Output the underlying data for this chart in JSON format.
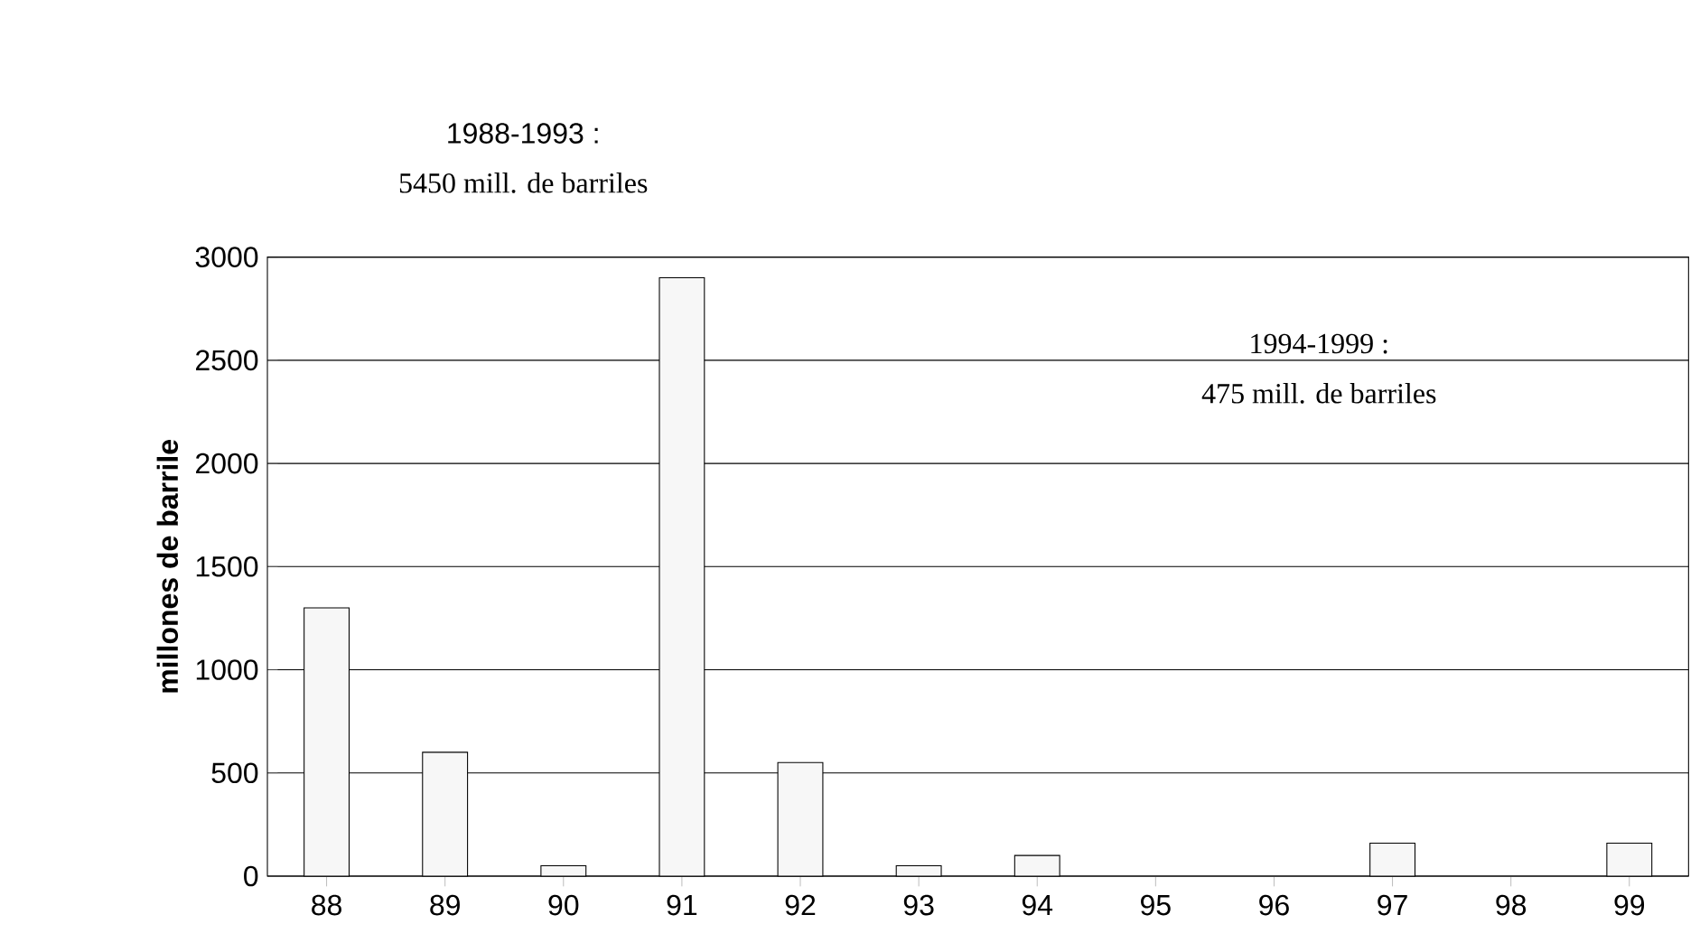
{
  "chart_data": {
    "type": "bar",
    "ylabel": "millones de barrile",
    "categories": [
      "88",
      "89",
      "90",
      "91",
      "92",
      "93",
      "94",
      "95",
      "96",
      "97",
      "98",
      "99"
    ],
    "values": [
      1300,
      600,
      50,
      2900,
      550,
      50,
      100,
      null,
      null,
      160,
      null,
      160
    ],
    "color": "#f7f7f7",
    "ylim": [
      0,
      3000
    ],
    "yticks": [
      0,
      500,
      1000,
      1500,
      2000,
      2500,
      3000
    ],
    "grid": "y",
    "annotations": [
      "1988-1993 :",
      "5450 mill. de barriles",
      "1994-1999 :",
      "475 mill. de barriles"
    ]
  }
}
